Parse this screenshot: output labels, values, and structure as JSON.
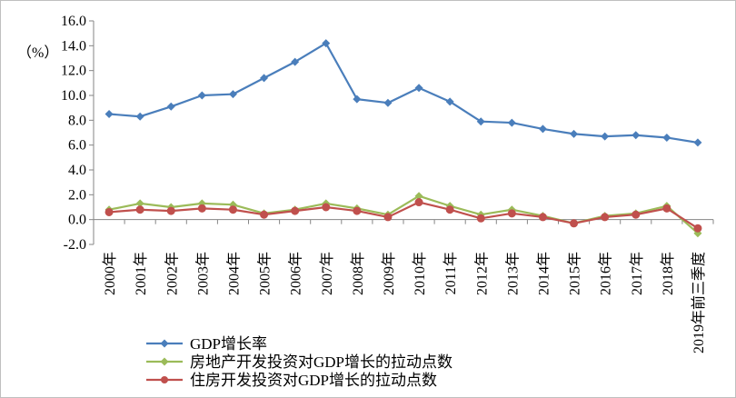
{
  "chart_data": {
    "type": "line",
    "ylabel": "（%）",
    "ylim": [
      -2.0,
      16.0
    ],
    "yticks": [
      "16.0",
      "14.0",
      "12.0",
      "10.0",
      "8.0",
      "6.0",
      "4.0",
      "2.0",
      "0.0",
      "-2.0"
    ],
    "ytick_values": [
      16,
      14,
      12,
      10,
      8,
      6,
      4,
      2,
      0,
      -2
    ],
    "categories": [
      "2000年",
      "2001年",
      "2002年",
      "2003年",
      "2004年",
      "2005年",
      "2006年",
      "2007年",
      "2008年",
      "2009年",
      "2010年",
      "2011年",
      "2012年",
      "2013年",
      "2014年",
      "2015年",
      "2016年",
      "2017年",
      "2018年",
      "2019年前三季度"
    ],
    "grid": false,
    "legend_position": "bottom-left",
    "series": [
      {
        "name": "GDP增长率",
        "color": "#4a7ebb",
        "marker": "diamond",
        "values": [
          8.5,
          8.3,
          9.1,
          10.0,
          10.1,
          11.4,
          12.7,
          14.2,
          9.7,
          9.4,
          10.6,
          9.5,
          7.9,
          7.8,
          7.3,
          6.9,
          6.7,
          6.8,
          6.6,
          6.2
        ]
      },
      {
        "name": "房地产开发投资对GDP增长的拉动点数",
        "color": "#9bbb59",
        "marker": "diamond",
        "values": [
          0.8,
          1.3,
          1.0,
          1.3,
          1.2,
          0.5,
          0.8,
          1.3,
          0.9,
          0.4,
          1.9,
          1.1,
          0.4,
          0.8,
          0.3,
          -0.3,
          0.3,
          0.5,
          1.1,
          -1.1
        ]
      },
      {
        "name": "住房开发投资对GDP增长的拉动点数",
        "color": "#c0504d",
        "marker": "circle",
        "values": [
          0.6,
          0.8,
          0.7,
          0.9,
          0.8,
          0.4,
          0.7,
          1.0,
          0.7,
          0.2,
          1.4,
          0.8,
          0.1,
          0.5,
          0.2,
          -0.3,
          0.2,
          0.4,
          0.9,
          -0.7
        ]
      }
    ]
  }
}
